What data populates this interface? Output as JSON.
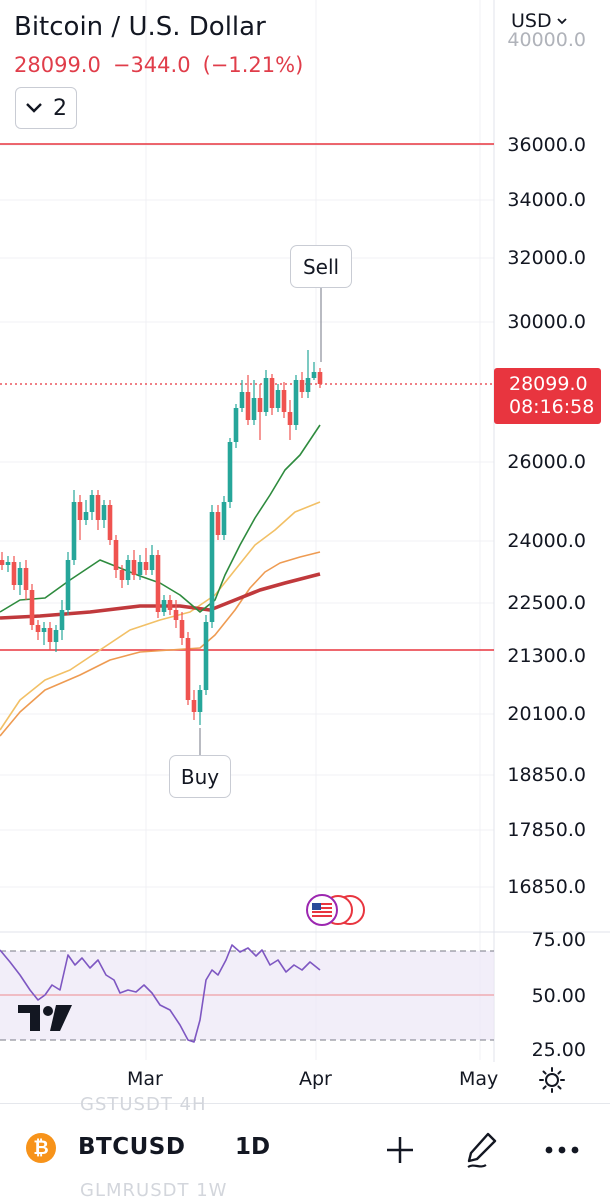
{
  "header": {
    "title": "Bitcoin / U.S. Dollar",
    "price": "28099.0",
    "change": "−344.0",
    "change_pct": "(−1.21%)",
    "indicator_count": "2",
    "currency": "USD"
  },
  "price_axis": {
    "labels": [
      "40000.0",
      "36000.0",
      "34000.0",
      "32000.0",
      "30000.0",
      "26000.0",
      "24000.0",
      "22500.0",
      "21300.0",
      "20100.0",
      "18850.0",
      "17850.0",
      "16850.0"
    ],
    "current_price": "28099.0",
    "countdown": "08:16:58"
  },
  "callouts": {
    "sell": "Sell",
    "buy": "Buy"
  },
  "rsi_axis": {
    "labels": [
      "75.00",
      "50.00",
      "25.00"
    ]
  },
  "time_axis": {
    "labels": [
      "Mar",
      "Apr",
      "May"
    ]
  },
  "bottom_bar": {
    "symbol": "BTCUSD",
    "interval": "1D",
    "ghost_top": "GSTUSDT   4H",
    "ghost_bottom": "GLMRUSDT   1W"
  },
  "colors": {
    "bull": "#26a69a",
    "bear": "#ef5350",
    "accent_red": "#e8353f",
    "ma_fast": "#2e8b3e",
    "ma_mid": "#f2c066",
    "ma_slow": "#ee9b52",
    "ma_200": "#c0393c",
    "rsi": "#7e57c2"
  }
}
